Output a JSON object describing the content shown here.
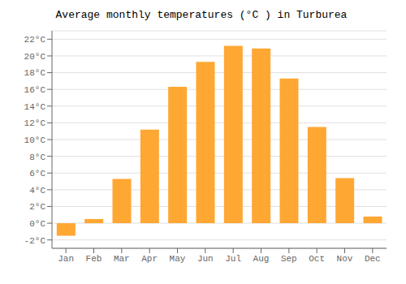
{
  "chart_data": {
    "type": "bar",
    "title": "Average monthly temperatures (°C ) in Turburea",
    "categories": [
      "Jan",
      "Feb",
      "Mar",
      "Apr",
      "May",
      "Jun",
      "Jul",
      "Aug",
      "Sep",
      "Oct",
      "Nov",
      "Dec"
    ],
    "values": [
      -1.5,
      0.5,
      5.3,
      11.2,
      16.3,
      19.3,
      21.2,
      20.9,
      17.3,
      11.5,
      5.4,
      0.8
    ],
    "color": "#FFA733",
    "ylim": [
      -3,
      23
    ],
    "yticks": [
      {
        "value": -2,
        "label": "-2°C"
      },
      {
        "value": 0,
        "label": "0°C"
      },
      {
        "value": 2,
        "label": "2°C"
      },
      {
        "value": 4,
        "label": "4°C"
      },
      {
        "value": 6,
        "label": "6°C"
      },
      {
        "value": 8,
        "label": "8°C"
      },
      {
        "value": 10,
        "label": "10°C"
      },
      {
        "value": 12,
        "label": "12°C"
      },
      {
        "value": 14,
        "label": "14°C"
      },
      {
        "value": 16,
        "label": "16°C"
      },
      {
        "value": 18,
        "label": "18°C"
      },
      {
        "value": 20,
        "label": "20°C"
      },
      {
        "value": 22,
        "label": "22°C"
      }
    ],
    "grid": true
  }
}
